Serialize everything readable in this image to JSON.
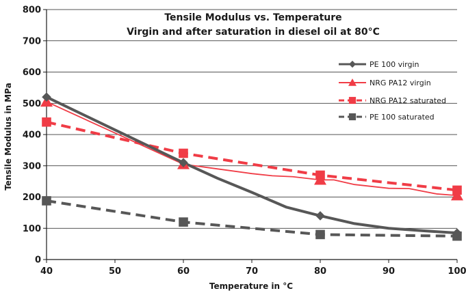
{
  "chart_data": {
    "type": "line",
    "title": "Tensile Modulus vs. Temperature",
    "subtitle": "Virgin and after saturation in diesel oil at 80°C",
    "xlabel": "Temperature in °C",
    "ylabel": "Tensile Modulus in MPa",
    "xlim": [
      40,
      100
    ],
    "ylim": [
      0,
      800
    ],
    "x_ticks": [
      40,
      50,
      60,
      70,
      80,
      90,
      100
    ],
    "y_ticks": [
      0,
      100,
      200,
      300,
      400,
      500,
      600,
      700,
      800
    ],
    "grid": "horizontal",
    "legend_position": "right",
    "series": [
      {
        "name": "PE 100 virgin",
        "color": "#575757",
        "line": "solid-thick",
        "marker": "diamond",
        "x": [
          40,
          50,
          60,
          65,
          70,
          75,
          80,
          85,
          90,
          95,
          100
        ],
        "y": [
          520,
          415,
          310,
          260,
          215,
          168,
          140,
          115,
          100,
          92,
          85
        ],
        "marker_x": [
          40,
          60,
          80,
          100
        ],
        "marker_y": [
          520,
          310,
          140,
          85
        ]
      },
      {
        "name": "NRG PA12 virgin",
        "color": "#f03c46",
        "line": "solid-thin",
        "marker": "triangle",
        "x": [
          40,
          50,
          60,
          65,
          70,
          73,
          76,
          80,
          82,
          85,
          90,
          93,
          97,
          100
        ],
        "y": [
          505,
          405,
          305,
          290,
          275,
          268,
          265,
          255,
          255,
          240,
          228,
          227,
          210,
          205
        ],
        "marker_x": [
          40,
          60,
          80,
          100
        ],
        "marker_y": [
          505,
          305,
          255,
          205
        ]
      },
      {
        "name": "NRG PA12 saturated",
        "color": "#f03c46",
        "line": "dashed-thick",
        "marker": "square",
        "x": [
          40,
          60,
          80,
          100
        ],
        "y": [
          440,
          340,
          270,
          222
        ],
        "marker_x": [
          40,
          60,
          80,
          100
        ],
        "marker_y": [
          440,
          340,
          270,
          222
        ]
      },
      {
        "name": "PE 100 saturated",
        "color": "#575757",
        "line": "dashed-thick",
        "marker": "square",
        "x": [
          40,
          60,
          80,
          100
        ],
        "y": [
          188,
          120,
          80,
          75
        ],
        "marker_x": [
          40,
          60,
          80,
          100
        ],
        "marker_y": [
          188,
          120,
          80,
          75
        ]
      }
    ]
  }
}
